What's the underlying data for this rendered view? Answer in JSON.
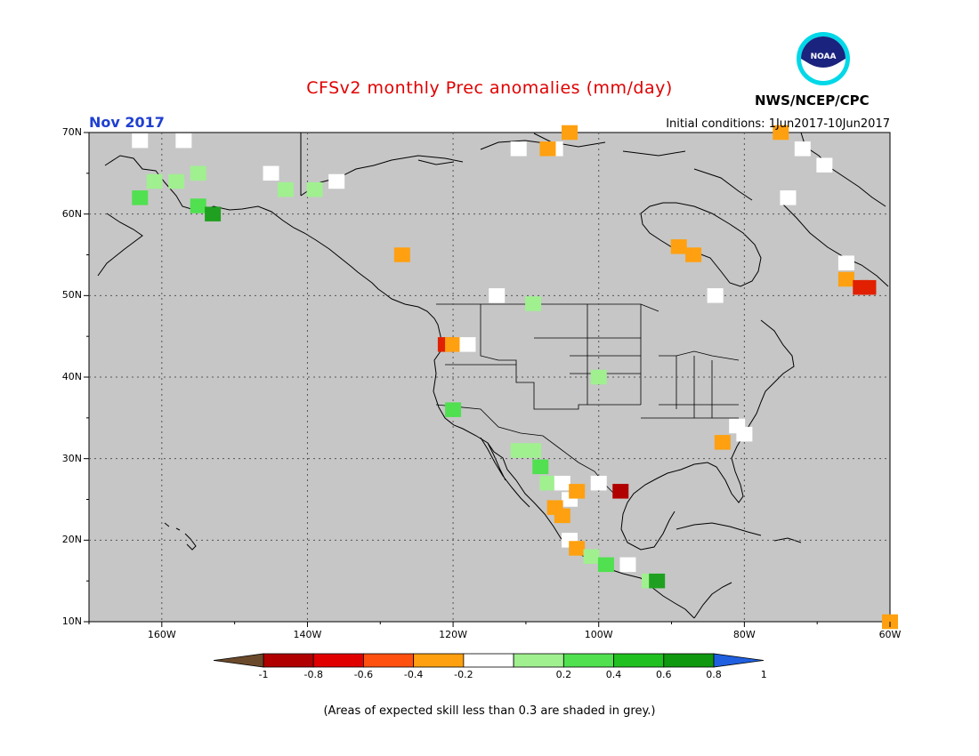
{
  "header": {
    "title": "CFSv2 monthly Prec anomalies (mm/day)",
    "month": "Nov 2017",
    "initial_conditions": "Initial conditions: 1Jun2017-10Jun2017",
    "agency": "NWS/NCEP/CPC",
    "logo_text": "NOAA"
  },
  "footnote": "(Areas of expected skill less than 0.3 are shaded in grey.)",
  "map": {
    "region": "North America",
    "lon_range": [
      -170,
      -60
    ],
    "lat_range": [
      10,
      70
    ],
    "background_color": "#c6c6c6",
    "lat_labels": [
      "70N",
      "60N",
      "50N",
      "40N",
      "30N",
      "20N",
      "10N"
    ],
    "lon_labels": [
      "160W",
      "140W",
      "120W",
      "100W",
      "80W",
      "60W"
    ]
  },
  "colorbar": {
    "labels": [
      "-1",
      "-0.8",
      "-0.6",
      "-0.4",
      "-0.2",
      "0.2",
      "0.4",
      "0.6",
      "0.8",
      "1"
    ],
    "colors": [
      "#6b4a2b",
      "#b00000",
      "#e00000",
      "#ff5010",
      "#ffa010",
      "#ffffff",
      "#a0f090",
      "#50e050",
      "#20c020",
      "#109810",
      "#2060e0"
    ]
  },
  "anomaly_cells": [
    {
      "lon": -161,
      "lat": 64,
      "cat": "light_green"
    },
    {
      "lon": -158,
      "lat": 64,
      "cat": "light_green"
    },
    {
      "lon": -155,
      "lat": 65,
      "cat": "light_green"
    },
    {
      "lon": -163,
      "lat": 62,
      "cat": "green"
    },
    {
      "lon": -155,
      "lat": 61,
      "cat": "green"
    },
    {
      "lon": -153,
      "lat": 60,
      "cat": "dark_green"
    },
    {
      "lon": -143,
      "lat": 63,
      "cat": "light_green"
    },
    {
      "lon": -139,
      "lat": 63,
      "cat": "light_green"
    },
    {
      "lon": -163,
      "lat": 69,
      "cat": "white"
    },
    {
      "lon": -157,
      "lat": 69,
      "cat": "white"
    },
    {
      "lon": -145,
      "lat": 65,
      "cat": "white"
    },
    {
      "lon": -136,
      "lat": 64,
      "cat": "white"
    },
    {
      "lon": -111,
      "lat": 68,
      "cat": "white"
    },
    {
      "lon": -106,
      "lat": 68,
      "cat": "white"
    },
    {
      "lon": -104,
      "lat": 70,
      "cat": "orange"
    },
    {
      "lon": -107,
      "lat": 68,
      "cat": "orange"
    },
    {
      "lon": -75,
      "lat": 70,
      "cat": "orange"
    },
    {
      "lon": -72,
      "lat": 68,
      "cat": "white"
    },
    {
      "lon": -69,
      "lat": 66,
      "cat": "white"
    },
    {
      "lon": -74,
      "lat": 62,
      "cat": "white"
    },
    {
      "lon": -89,
      "lat": 56,
      "cat": "orange"
    },
    {
      "lon": -87,
      "lat": 55,
      "cat": "orange"
    },
    {
      "lon": -127,
      "lat": 55,
      "cat": "orange"
    },
    {
      "lon": -66,
      "lat": 52,
      "cat": "orange"
    },
    {
      "lon": -64,
      "lat": 51,
      "cat": "red"
    },
    {
      "lon": -63,
      "lat": 51,
      "cat": "red"
    },
    {
      "lon": -66,
      "lat": 54,
      "cat": "white"
    },
    {
      "lon": -121,
      "lat": 44,
      "cat": "red"
    },
    {
      "lon": -120,
      "lat": 44,
      "cat": "orange"
    },
    {
      "lon": -118,
      "lat": 44,
      "cat": "white"
    },
    {
      "lon": -120,
      "lat": 36,
      "cat": "green"
    },
    {
      "lon": -111,
      "lat": 31,
      "cat": "light_green"
    },
    {
      "lon": -109,
      "lat": 31,
      "cat": "light_green"
    },
    {
      "lon": -108,
      "lat": 29,
      "cat": "green"
    },
    {
      "lon": -107,
      "lat": 27,
      "cat": "light_green"
    },
    {
      "lon": -105,
      "lat": 27,
      "cat": "white"
    },
    {
      "lon": -104,
      "lat": 25,
      "cat": "white"
    },
    {
      "lon": -106,
      "lat": 24,
      "cat": "orange"
    },
    {
      "lon": -105,
      "lat": 23,
      "cat": "orange"
    },
    {
      "lon": -103,
      "lat": 26,
      "cat": "orange"
    },
    {
      "lon": -100,
      "lat": 27,
      "cat": "white"
    },
    {
      "lon": -97,
      "lat": 26,
      "cat": "dark_red"
    },
    {
      "lon": -104,
      "lat": 20,
      "cat": "white"
    },
    {
      "lon": -103,
      "lat": 19,
      "cat": "orange"
    },
    {
      "lon": -101,
      "lat": 18,
      "cat": "light_green"
    },
    {
      "lon": -99,
      "lat": 17,
      "cat": "green"
    },
    {
      "lon": -96,
      "lat": 17,
      "cat": "white"
    },
    {
      "lon": -93,
      "lat": 15,
      "cat": "light_green"
    },
    {
      "lon": -92,
      "lat": 15,
      "cat": "dark_green"
    },
    {
      "lon": -83,
      "lat": 32,
      "cat": "orange"
    },
    {
      "lon": -81,
      "lat": 34,
      "cat": "white"
    },
    {
      "lon": -80,
      "lat": 33,
      "cat": "white"
    },
    {
      "lon": -109,
      "lat": 49,
      "cat": "light_green"
    },
    {
      "lon": -100,
      "lat": 40,
      "cat": "light_green"
    },
    {
      "lon": -114,
      "lat": 50,
      "cat": "white"
    },
    {
      "lon": -84,
      "lat": 50,
      "cat": "white"
    },
    {
      "lon": -60,
      "lat": 10,
      "cat": "orange"
    }
  ]
}
